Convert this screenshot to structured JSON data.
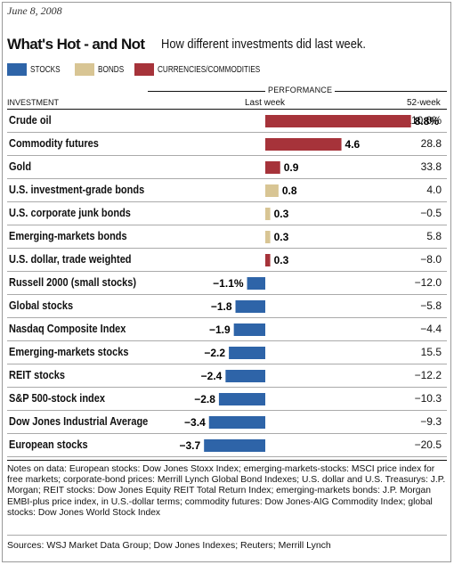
{
  "date": "June 8, 2008",
  "title": "What's Hot - and Not",
  "subtitle": "How different investments did last week.",
  "legend": [
    {
      "label": "STOCKS",
      "color": "#2e64a8"
    },
    {
      "label": "BONDS",
      "color": "#d8c594"
    },
    {
      "label": "CURRENCIES/COMMODITIES",
      "color": "#a6333a"
    }
  ],
  "headers": {
    "performance": "PERFORMANCE",
    "investment": "INVESTMENT",
    "last_week": "Last week",
    "week52": "52-week"
  },
  "chart_data": {
    "type": "bar",
    "orientation": "horizontal",
    "title": "What's Hot - and Not",
    "subtitle": "How different investments did last week.",
    "x_label": "Last week",
    "series_label": "PERFORMANCE",
    "categories": [
      "Crude oil",
      "Commodity futures",
      "Gold",
      "U.S. investment-grade bonds",
      "U.S. corporate junk bonds",
      "Emerging-markets bonds",
      "U.S. dollar, trade weighted",
      "Russell 2000 (small stocks)",
      "Global stocks",
      "Nasdaq Composite Index",
      "Emerging-markets stocks",
      "REIT stocks",
      "S&P 500-stock index",
      "Dow Jones Industrial Average",
      "European stocks"
    ],
    "last_week": [
      8.8,
      4.6,
      0.9,
      0.8,
      0.3,
      0.3,
      0.3,
      -1.1,
      -1.8,
      -1.9,
      -2.2,
      -2.4,
      -2.8,
      -3.4,
      -3.7
    ],
    "last_week_labels": [
      "8.8%",
      "4.6",
      "0.9",
      "0.8",
      "0.3",
      "0.3",
      "0.3",
      "−1.1%",
      "−1.8",
      "−1.9",
      "−2.2",
      "−2.4",
      "−2.8",
      "−3.4",
      "−3.7"
    ],
    "groups": [
      "commodities",
      "commodities",
      "commodities",
      "bonds",
      "bonds",
      "bonds",
      "commodities",
      "stocks",
      "stocks",
      "stocks",
      "stocks",
      "stocks",
      "stocks",
      "stocks",
      "stocks"
    ],
    "week52": [
      "110.0%",
      "28.8",
      "33.8",
      "4.0",
      "−0.5",
      "5.8",
      "−8.0",
      "−12.0",
      "−5.8",
      "−4.4",
      "15.5",
      "−12.2",
      "−10.3",
      "−9.3",
      "−20.5"
    ],
    "colors": {
      "stocks": "#2e64a8",
      "bonds": "#d8c594",
      "commodities": "#a6333a"
    }
  },
  "notes": "Notes on data: European stocks: Dow Jones Stoxx Index; emerging-markets-stocks: MSCI price index for free markets; corporate-bond prices: Merrill Lynch Global Bond Indexes; U.S. dollar and U.S. Treasurys: J.P. Morgan; REIT stocks: Dow Jones Equity REIT Total Return Index; emerging-markets bonds: J.P. Morgan EMBI-plus price index, in U.S.-dollar terms; commodity futures: Dow Jones-AIG Commodity Index; global stocks: Dow Jones World Stock Index",
  "sources": "Sources: WSJ Market Data Group; Dow Jones Indexes; Reuters; Merrill Lynch"
}
